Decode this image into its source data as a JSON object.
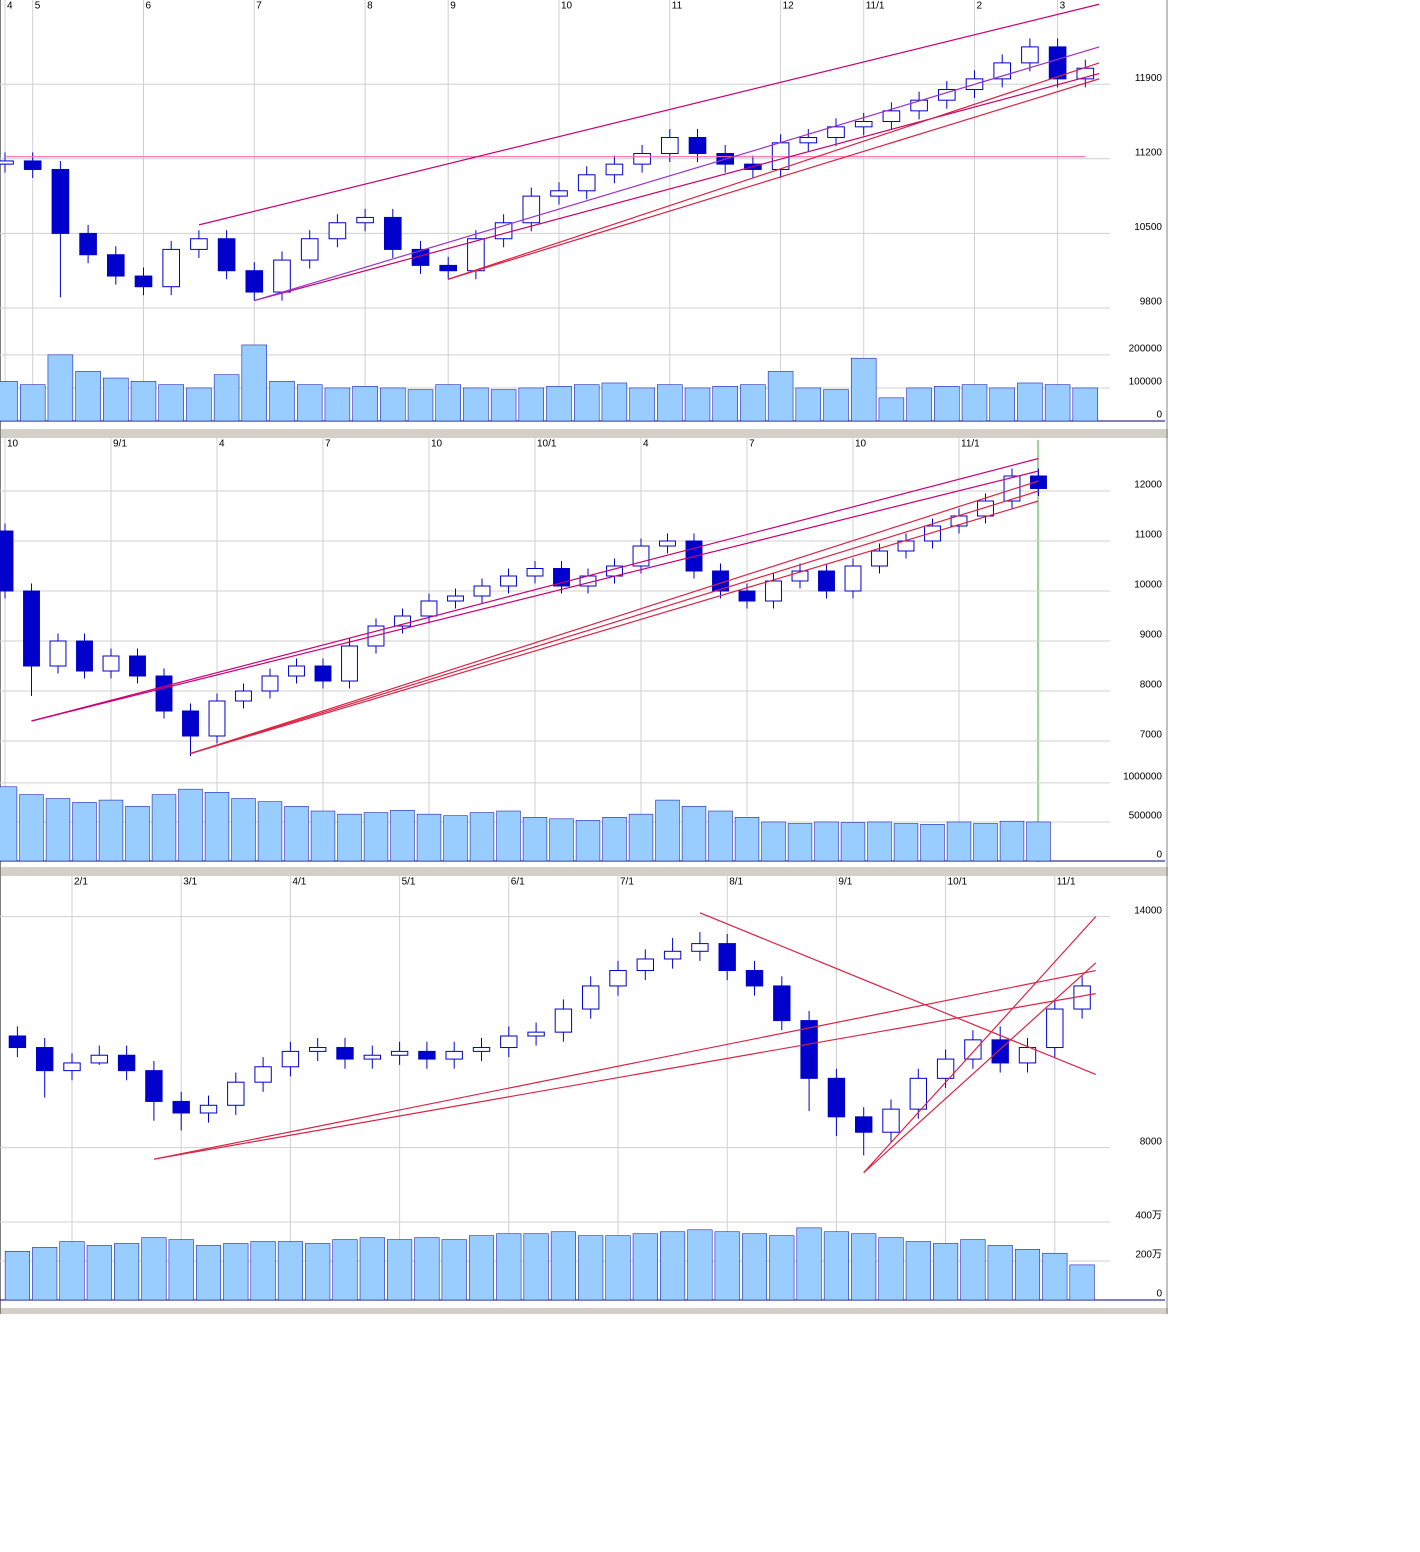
{
  "chart_data": [
    {
      "type": "candlestick",
      "grid": true,
      "categories": [
        "4",
        "5",
        null,
        null,
        null,
        "6",
        null,
        null,
        null,
        "7",
        null,
        null,
        null,
        "8",
        null,
        null,
        "9",
        null,
        null,
        null,
        "10",
        null,
        null,
        null,
        "11",
        null,
        null,
        null,
        "12",
        null,
        null,
        "11/1",
        null,
        null,
        null,
        "2",
        null,
        null,
        "3",
        null
      ],
      "open": [
        11150,
        11180,
        11100,
        10500,
        10300,
        10100,
        10000,
        10350,
        10450,
        10150,
        9950,
        10250,
        10450,
        10600,
        10650,
        10350,
        10200,
        10150,
        10450,
        10600,
        10850,
        10900,
        11050,
        11150,
        11250,
        11400,
        11250,
        11150,
        11100,
        11350,
        11400,
        11500,
        11550,
        11650,
        11750,
        11850,
        11950,
        12100,
        12250,
        11950
      ],
      "high": [
        11260,
        11260,
        11180,
        10580,
        10380,
        10180,
        10430,
        10530,
        10530,
        10230,
        10330,
        10530,
        10680,
        10730,
        10730,
        10430,
        10280,
        10530,
        10680,
        10930,
        10980,
        11130,
        11230,
        11330,
        11480,
        11480,
        11330,
        11230,
        11430,
        11480,
        11580,
        11630,
        11730,
        11830,
        11930,
        12030,
        12180,
        12330,
        12330,
        12130
      ],
      "low": [
        11070,
        11020,
        9900,
        10220,
        10020,
        9920,
        9920,
        10270,
        10070,
        9870,
        9870,
        10170,
        10370,
        10520,
        10270,
        10120,
        10070,
        10070,
        10370,
        10520,
        10770,
        10820,
        10970,
        11070,
        11170,
        11170,
        11070,
        11020,
        11020,
        11270,
        11320,
        11420,
        11470,
        11570,
        11670,
        11770,
        11870,
        12020,
        11870,
        11870
      ],
      "close": [
        11180,
        11100,
        10500,
        10300,
        10100,
        10000,
        10350,
        10450,
        10150,
        9950,
        10250,
        10450,
        10600,
        10650,
        10350,
        10200,
        10150,
        10450,
        10600,
        10850,
        10900,
        11050,
        11150,
        11250,
        11400,
        11250,
        11150,
        11100,
        11350,
        11400,
        11500,
        11550,
        11650,
        11750,
        11850,
        11950,
        12100,
        12250,
        11950,
        12050
      ],
      "ylim": [
        9500,
        12690
      ],
      "yticks": [
        9800,
        10500,
        11200,
        11900
      ],
      "colors": {
        "up": "#ffffff",
        "down": "#0000cc",
        "edge": "#0000cc"
      },
      "volume": {
        "values": [
          120000,
          110000,
          200000,
          150000,
          130000,
          120000,
          110000,
          100000,
          140000,
          230000,
          120000,
          110000,
          100000,
          105000,
          100000,
          95000,
          110000,
          100000,
          95000,
          100000,
          105000,
          110000,
          115000,
          100000,
          110000,
          100000,
          105000,
          110000,
          150000,
          100000,
          95000,
          190000,
          70000,
          100000,
          105000,
          110000,
          100000,
          115000,
          110000,
          100000
        ],
        "ylim": [
          0,
          245000
        ],
        "yticks": [
          0,
          100000,
          200000
        ],
        "color": "#99ccff"
      },
      "trendlines": [
        {
          "x": [
            0,
            39
          ],
          "y": [
            11220,
            11220
          ],
          "color": "#ff66aa"
        },
        {
          "x": [
            7,
            39.5
          ],
          "y": [
            10580,
            12650
          ],
          "color": "#cc0077"
        },
        {
          "x": [
            9,
            39.5
          ],
          "y": [
            9870,
            12000
          ],
          "color": "#cc0066"
        },
        {
          "x": [
            16,
            39.5
          ],
          "y": [
            10070,
            11950
          ],
          "color": "#dd2244"
        },
        {
          "x": [
            16,
            39.5
          ],
          "y": [
            10070,
            12100
          ],
          "color": "#dd2244"
        },
        {
          "x": [
            9,
            39.5
          ],
          "y": [
            9870,
            12250
          ],
          "color": "#9933cc"
        }
      ]
    },
    {
      "type": "candlestick",
      "grid": true,
      "categories": [
        "10",
        null,
        null,
        null,
        "9/1",
        null,
        null,
        null,
        "4",
        null,
        null,
        null,
        "7",
        null,
        null,
        null,
        "10",
        null,
        null,
        null,
        "10/1",
        null,
        null,
        null,
        "4",
        null,
        null,
        null,
        "7",
        null,
        null,
        null,
        "10",
        null,
        null,
        null,
        "11/1",
        null,
        null,
        null
      ],
      "open": [
        11200,
        10000,
        8500,
        9000,
        8400,
        8700,
        8300,
        7600,
        7100,
        7800,
        8000,
        8300,
        8500,
        8200,
        8900,
        9300,
        9500,
        9800,
        9900,
        10100,
        10300,
        10450,
        10100,
        10300,
        10500,
        10900,
        11000,
        10400,
        10000,
        9800,
        10200,
        10400,
        10000,
        10500,
        10800,
        11000,
        11300,
        11500,
        11800,
        12300
      ],
      "high": [
        11350,
        10150,
        9150,
        9150,
        8850,
        8850,
        8450,
        7750,
        7950,
        8150,
        8450,
        8650,
        8650,
        9050,
        9450,
        9650,
        9950,
        10050,
        10250,
        10450,
        10600,
        10600,
        10450,
        10650,
        11050,
        11150,
        11150,
        10550,
        10150,
        10350,
        10550,
        10550,
        10650,
        10950,
        11150,
        11450,
        11650,
        11950,
        12450,
        12450
      ],
      "low": [
        9850,
        7900,
        8350,
        8250,
        8250,
        8150,
        7450,
        6700,
        6950,
        7650,
        7850,
        8150,
        8050,
        8050,
        8750,
        9150,
        9350,
        9650,
        9750,
        9950,
        10150,
        9950,
        9950,
        10150,
        10350,
        10750,
        10250,
        9850,
        9650,
        9650,
        10050,
        9850,
        9850,
        10350,
        10650,
        10850,
        11150,
        11350,
        11650,
        11900
      ],
      "close": [
        10000,
        8500,
        9000,
        8400,
        8700,
        8300,
        7600,
        7100,
        7800,
        8000,
        8300,
        8500,
        8200,
        8900,
        9300,
        9500,
        9800,
        9900,
        10100,
        10300,
        10450,
        10100,
        10300,
        10500,
        10900,
        11000,
        10400,
        10000,
        9800,
        10200,
        10400,
        10000,
        10500,
        10800,
        11000,
        11300,
        11500,
        11800,
        12300,
        12050
      ],
      "ylim": [
        6300,
        13000
      ],
      "yticks": [
        7000,
        8000,
        9000,
        10000,
        11000,
        12000
      ],
      "colors": {
        "up": "#ffffff",
        "down": "#0000cc",
        "edge": "#0000cc"
      },
      "volume": {
        "values": [
          950000,
          850000,
          800000,
          750000,
          780000,
          700000,
          850000,
          920000,
          880000,
          800000,
          760000,
          700000,
          640000,
          600000,
          620000,
          650000,
          600000,
          580000,
          620000,
          640000,
          560000,
          540000,
          520000,
          560000,
          600000,
          780000,
          700000,
          640000,
          560000,
          500000,
          480000,
          500000,
          490000,
          500000,
          480000,
          470000,
          500000,
          480000,
          510000,
          500000
        ],
        "ylim": [
          0,
          1050000
        ],
        "yticks": [
          0,
          500000,
          1000000
        ],
        "color": "#99ccff"
      },
      "trendlines": [
        {
          "x": [
            1,
            39
          ],
          "y": [
            7400,
            12400
          ],
          "color": "#cc0077"
        },
        {
          "x": [
            1,
            39
          ],
          "y": [
            7400,
            12650
          ],
          "color": "#cc0077"
        },
        {
          "x": [
            7,
            39
          ],
          "y": [
            6750,
            12000
          ],
          "color": "#dd2244"
        },
        {
          "x": [
            7,
            39
          ],
          "y": [
            6750,
            11800
          ],
          "color": "#dd2244"
        },
        {
          "x": [
            7,
            39
          ],
          "y": [
            6750,
            12200
          ],
          "color": "#dd2244"
        }
      ]
    },
    {
      "type": "candlestick",
      "grid": true,
      "categories": [
        null,
        null,
        "2/1",
        null,
        null,
        null,
        "3/1",
        null,
        null,
        null,
        "4/1",
        null,
        null,
        null,
        "5/1",
        null,
        null,
        null,
        "6/1",
        null,
        null,
        null,
        "7/1",
        null,
        null,
        null,
        "8/1",
        null,
        null,
        null,
        "9/1",
        null,
        null,
        null,
        "10/1",
        null,
        null,
        null,
        "11/1",
        null
      ],
      "open": [
        10900,
        10600,
        10000,
        10200,
        10400,
        10000,
        9200,
        8900,
        9100,
        9700,
        10100,
        10500,
        10600,
        10300,
        10400,
        10500,
        10300,
        10500,
        10600,
        10900,
        11000,
        11600,
        12200,
        12600,
        12900,
        13100,
        13300,
        12600,
        12200,
        11300,
        9800,
        8800,
        8400,
        9000,
        9800,
        10300,
        10800,
        10200,
        10600,
        11600
      ],
      "high": [
        11150,
        10850,
        10450,
        10650,
        10650,
        10250,
        9450,
        9350,
        9950,
        10350,
        10750,
        10850,
        10850,
        10650,
        10750,
        10750,
        10750,
        10850,
        11150,
        11250,
        11850,
        12450,
        12850,
        13150,
        13450,
        13600,
        13550,
        12850,
        12450,
        11550,
        10050,
        9050,
        9250,
        10050,
        10550,
        11050,
        11150,
        10850,
        11850,
        12450
      ],
      "low": [
        10350,
        9300,
        9750,
        10150,
        9750,
        8700,
        8450,
        8650,
        8850,
        9450,
        9850,
        10250,
        10050,
        10050,
        10150,
        10050,
        10050,
        10250,
        10350,
        10650,
        10750,
        11350,
        11950,
        12350,
        12650,
        12850,
        12350,
        11950,
        11050,
        8950,
        8300,
        7800,
        8150,
        8750,
        9550,
        10050,
        9950,
        9950,
        10350,
        11350
      ],
      "close": [
        10600,
        10000,
        10200,
        10400,
        10000,
        9200,
        8900,
        9100,
        9700,
        10100,
        10500,
        10600,
        10300,
        10400,
        10500,
        10300,
        10500,
        10600,
        10900,
        11000,
        11600,
        12200,
        12600,
        12900,
        13100,
        13300,
        12600,
        12200,
        11300,
        9800,
        8800,
        8400,
        9000,
        9800,
        10300,
        10800,
        10200,
        10600,
        11600,
        12200
      ],
      "ylim": [
        6250,
        14900
      ],
      "yticks": [
        8000,
        14000
      ],
      "colors": {
        "up": "#ffffff",
        "down": "#0000cc",
        "edge": "#0000cc"
      },
      "volume": {
        "values": [
          2500000,
          2700000,
          3000000,
          2800000,
          2900000,
          3200000,
          3100000,
          2800000,
          2900000,
          3000000,
          3000000,
          2900000,
          3100000,
          3200000,
          3100000,
          3200000,
          3100000,
          3300000,
          3400000,
          3400000,
          3500000,
          3300000,
          3300000,
          3400000,
          3500000,
          3600000,
          3500000,
          3400000,
          3300000,
          3700000,
          3500000,
          3400000,
          3200000,
          3000000,
          2900000,
          3100000,
          2800000,
          2600000,
          2400000,
          1800000
        ],
        "ylim": [
          0,
          4360000
        ],
        "yticks": [
          0,
          {
            "value": 2000000,
            "label": "200万"
          },
          {
            "value": 4000000,
            "label": "400万"
          }
        ],
        "color": "#99ccff"
      },
      "trendlines": [
        {
          "x": [
            5,
            39.5
          ],
          "y": [
            7700,
            12600
          ],
          "color": "#dd2244"
        },
        {
          "x": [
            5,
            39.5
          ],
          "y": [
            7700,
            12000
          ],
          "color": "#dd2244"
        },
        {
          "x": [
            25,
            39.5
          ],
          "y": [
            14100,
            9900
          ],
          "color": "#dd2244"
        },
        {
          "x": [
            31,
            39.5
          ],
          "y": [
            7350,
            14000
          ],
          "color": "#dd2244"
        },
        {
          "x": [
            31,
            39.5
          ],
          "y": [
            7350,
            12800
          ],
          "color": "#dd2244"
        }
      ]
    }
  ]
}
